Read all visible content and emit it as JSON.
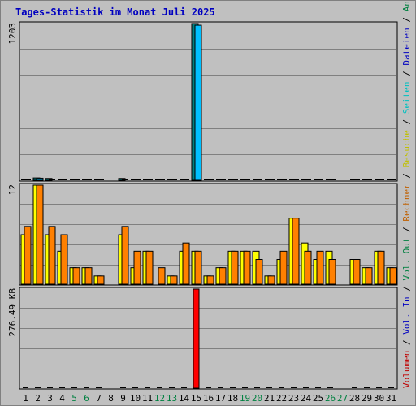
{
  "title": "Tages-Statistik im Monat Juli 2025",
  "legend": [
    {
      "label": "Anfragen",
      "color": "#008040"
    },
    {
      "label": "Dateien",
      "color": "#0000c0"
    },
    {
      "label": "Seiten",
      "color": "#00c0c0"
    },
    {
      "label": "Besuche",
      "color": "#c0c000"
    },
    {
      "label": "Rechner",
      "color": "#c06000"
    },
    {
      "label": "Vol. Out",
      "color": "#008040"
    },
    {
      "label": "Vol. In",
      "color": "#0000c0"
    },
    {
      "label": "Volumen",
      "color": "#c00000"
    }
  ],
  "colors": {
    "background": "#c0c0c0",
    "title": "#0000c0",
    "weekend": "#008040",
    "hits": "#008080",
    "files": "#00c0ff",
    "pages": "#00c0c0",
    "visits": "#ffff00",
    "sites": "#ff8000",
    "volume": "#ff0000"
  },
  "chart_data": [
    {
      "type": "bar",
      "panel": "hits-files-pages",
      "ymax_label": "1203",
      "ylim": [
        0,
        1203
      ],
      "x": [
        "1",
        "2",
        "3",
        "4",
        "5",
        "6",
        "7",
        "8",
        "9",
        "10",
        "11",
        "12",
        "13",
        "14",
        "15",
        "16",
        "17",
        "18",
        "19",
        "20",
        "21",
        "22",
        "23",
        "24",
        "25",
        "26",
        "27",
        "28",
        "29",
        "30",
        "31"
      ],
      "weekend_days": [
        "5",
        "6",
        "12",
        "13",
        "19",
        "20",
        "26",
        "27"
      ],
      "series": [
        {
          "name": "Anfragen",
          "values": [
            12,
            18,
            14,
            6,
            6,
            6,
            6,
            0,
            14,
            6,
            6,
            6,
            6,
            6,
            1203,
            6,
            6,
            6,
            6,
            6,
            6,
            6,
            12,
            6,
            6,
            6,
            0,
            6,
            6,
            6,
            6
          ]
        },
        {
          "name": "Dateien",
          "values": [
            8,
            16,
            10,
            4,
            4,
            4,
            4,
            0,
            10,
            4,
            4,
            4,
            4,
            4,
            1190,
            4,
            4,
            4,
            4,
            4,
            4,
            4,
            8,
            4,
            4,
            4,
            0,
            4,
            4,
            4,
            4
          ]
        },
        {
          "name": "Seiten",
          "values": [
            6,
            14,
            8,
            3,
            3,
            3,
            3,
            0,
            8,
            3,
            3,
            3,
            3,
            3,
            1180,
            3,
            3,
            3,
            3,
            3,
            3,
            3,
            6,
            3,
            3,
            3,
            0,
            3,
            3,
            3,
            3
          ]
        }
      ]
    },
    {
      "type": "bar",
      "panel": "visits-sites",
      "ymax_label": "12",
      "ylim": [
        0,
        12
      ],
      "x": [
        "1",
        "2",
        "3",
        "4",
        "5",
        "6",
        "7",
        "8",
        "9",
        "10",
        "11",
        "12",
        "13",
        "14",
        "15",
        "16",
        "17",
        "18",
        "19",
        "20",
        "21",
        "22",
        "23",
        "24",
        "25",
        "26",
        "27",
        "28",
        "29",
        "30",
        "31"
      ],
      "series": [
        {
          "name": "Besuche",
          "values": [
            6,
            12,
            6,
            4,
            2,
            2,
            1,
            0,
            6,
            2,
            4,
            0,
            1,
            4,
            4,
            1,
            2,
            4,
            4,
            4,
            1,
            3,
            8,
            5,
            3,
            4,
            0,
            3,
            2,
            4,
            2
          ]
        },
        {
          "name": "Rechner",
          "values": [
            7,
            12,
            7,
            6,
            2,
            2,
            1,
            0,
            7,
            4,
            4,
            2,
            1,
            5,
            4,
            1,
            2,
            4,
            4,
            3,
            1,
            4,
            8,
            4,
            4,
            3,
            0,
            3,
            2,
            4,
            2
          ]
        }
      ]
    },
    {
      "type": "bar",
      "panel": "volume",
      "ymax_label": "276.49 KB",
      "ylim": [
        0,
        276.49
      ],
      "x": [
        "1",
        "2",
        "3",
        "4",
        "5",
        "6",
        "7",
        "8",
        "9",
        "10",
        "11",
        "12",
        "13",
        "14",
        "15",
        "16",
        "17",
        "18",
        "19",
        "20",
        "21",
        "22",
        "23",
        "24",
        "25",
        "26",
        "27",
        "28",
        "29",
        "30",
        "31"
      ],
      "series": [
        {
          "name": "Volumen",
          "values": [
            1,
            1,
            1,
            1,
            1,
            1,
            1,
            0,
            1,
            1,
            1,
            1,
            1,
            1,
            276.49,
            1,
            1,
            1,
            1,
            1,
            1,
            1,
            1,
            1,
            1,
            1,
            0,
            1,
            1,
            1,
            1
          ]
        }
      ]
    }
  ]
}
